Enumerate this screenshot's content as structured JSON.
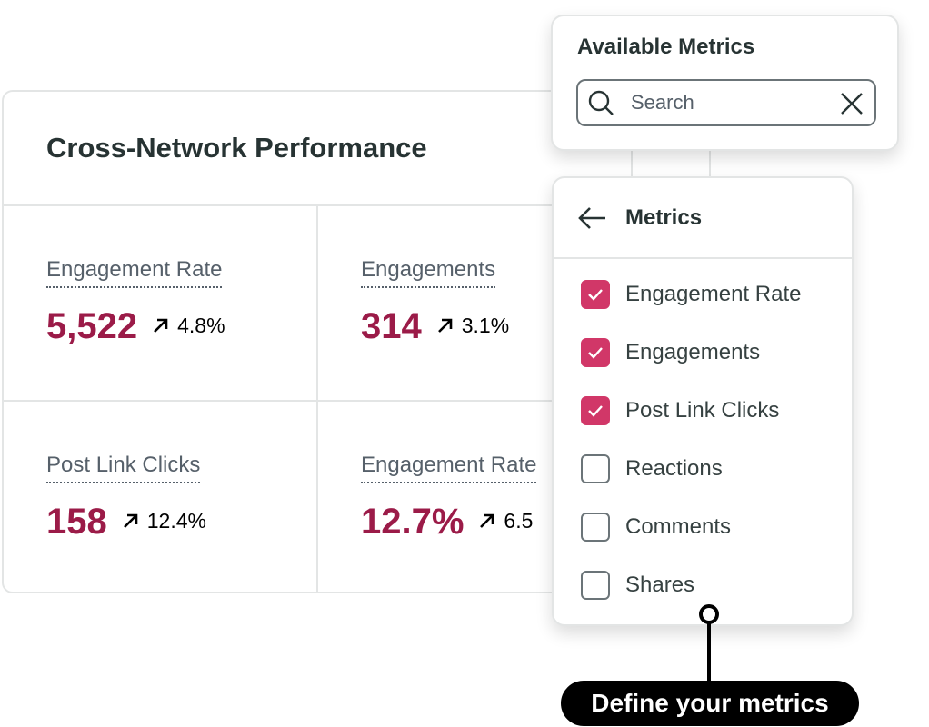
{
  "card": {
    "title": "Cross-Network Performance",
    "metrics": [
      {
        "label": "Engagement Rate",
        "value": "5,522",
        "delta": "4.8%",
        "trend": "up"
      },
      {
        "label": "Engagements",
        "value": "314",
        "delta": "3.1%",
        "trend": "up"
      },
      {
        "label": "Post Link Clicks",
        "value": "158",
        "delta": "12.4%",
        "trend": "up"
      },
      {
        "label": "Engagement Rate",
        "value": "12.7%",
        "delta": "6.5",
        "trend": "up"
      }
    ]
  },
  "available_metrics": {
    "title": "Available Metrics",
    "search_placeholder": "Search",
    "search_value": ""
  },
  "metrics_panel": {
    "title": "Metrics",
    "items": [
      {
        "label": "Engagement Rate",
        "checked": true
      },
      {
        "label": "Engagements",
        "checked": true
      },
      {
        "label": "Post Link Clicks",
        "checked": true
      },
      {
        "label": "Reactions",
        "checked": false
      },
      {
        "label": "Comments",
        "checked": false
      },
      {
        "label": "Shares",
        "checked": false
      }
    ]
  },
  "callout": "Define your metrics",
  "colors": {
    "accent": "#9b1b48",
    "checkbox": "#d13768",
    "text": "#273333"
  }
}
